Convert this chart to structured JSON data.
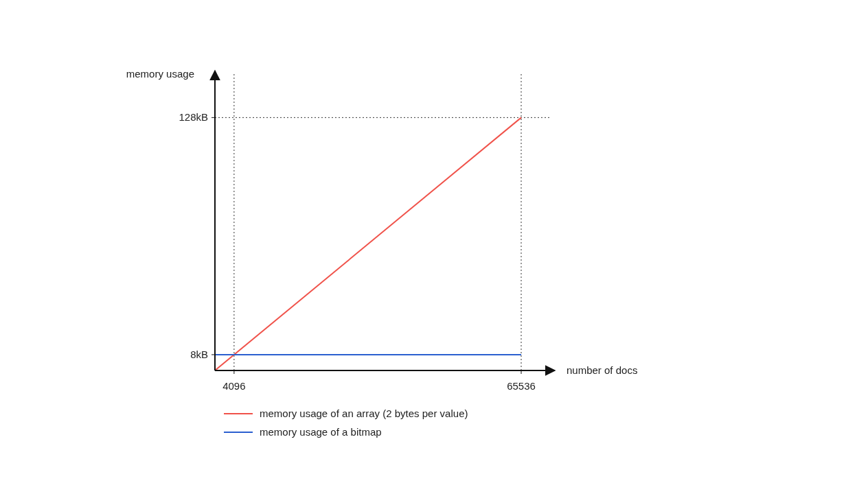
{
  "chart_data": {
    "type": "line",
    "xlabel": "number of docs",
    "ylabel": "memory usage",
    "x": [
      0,
      65536
    ],
    "series": [
      {
        "name": "memory usage of an array (2 bytes per value)",
        "color": "#f0524a",
        "values": [
          0,
          128
        ]
      },
      {
        "name": "memory usage of a bitmap",
        "color": "#2b5fd0",
        "values": [
          8,
          8
        ]
      }
    ],
    "xlim": [
      0,
      72000
    ],
    "ylim": [
      0,
      150
    ],
    "xticks": [
      4096,
      65536
    ],
    "yticks": [
      {
        "value": 8,
        "label": "8kB"
      },
      {
        "value": 128,
        "label": "128kB"
      }
    ],
    "ref_lines": [
      {
        "axis": "x",
        "value": 4096,
        "color": "#333333",
        "line_style": "dotted"
      },
      {
        "axis": "x",
        "value": 65536,
        "color": "#333333",
        "line_style": "dotted"
      },
      {
        "axis": "y",
        "value": 128,
        "color": "#333333",
        "line_style": "dotted"
      }
    ],
    "legend": "bottom",
    "line_style": "solid"
  }
}
